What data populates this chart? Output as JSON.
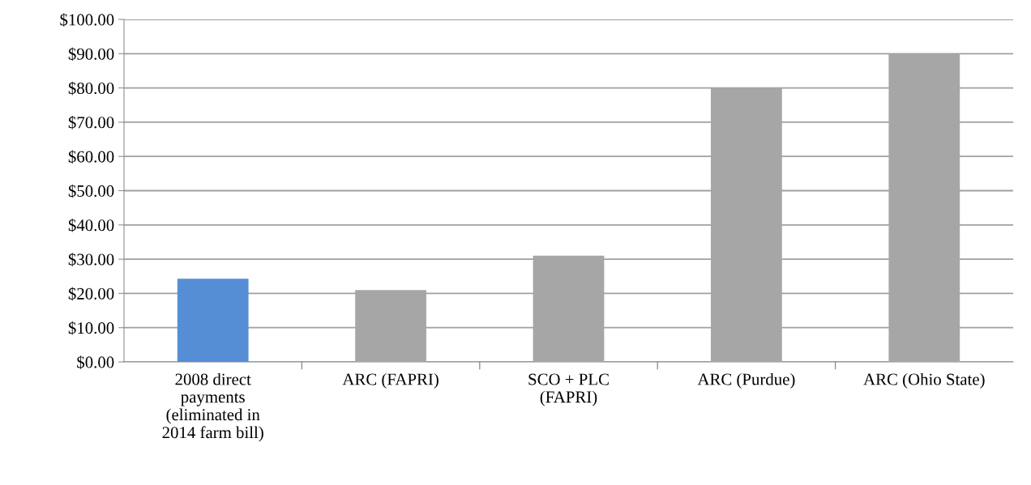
{
  "chart_data": {
    "type": "bar",
    "categories": [
      "2008 direct\npayments\n(eliminated in\n2014 farm bill)",
      "ARC (FAPRI)",
      "SCO + PLC\n(FAPRI)",
      "ARC (Purdue)",
      "ARC (Ohio State)"
    ],
    "values": [
      24.3,
      21,
      31,
      80,
      90
    ],
    "colors": [
      "#558ed5",
      "#a6a6a6",
      "#a6a6a6",
      "#a6a6a6",
      "#a6a6a6"
    ],
    "ylim": [
      0,
      100
    ],
    "yticks": [
      {
        "value": 0,
        "label": "$0.00"
      },
      {
        "value": 10,
        "label": "$10.00"
      },
      {
        "value": 20,
        "label": "$20.00"
      },
      {
        "value": 30,
        "label": "$30.00"
      },
      {
        "value": 40,
        "label": "$40.00"
      },
      {
        "value": 50,
        "label": "$50.00"
      },
      {
        "value": 60,
        "label": "$60.00"
      },
      {
        "value": 70,
        "label": "$70.00"
      },
      {
        "value": 80,
        "label": "$80.00"
      },
      {
        "value": 90,
        "label": "$90.00"
      },
      {
        "value": 100,
        "label": "$100.00"
      }
    ],
    "grid": "y"
  }
}
